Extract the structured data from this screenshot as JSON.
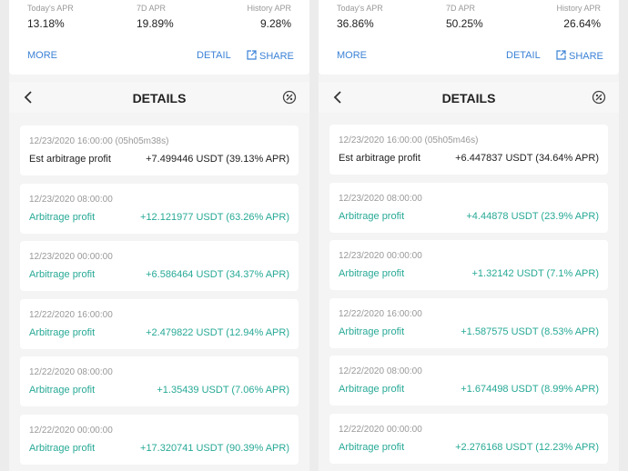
{
  "panels": [
    {
      "stats": [
        {
          "label": "Today's APR",
          "value": "13.18%"
        },
        {
          "label": "7D APR",
          "value": "19.89%"
        },
        {
          "label": "History APR",
          "value": "9.28%"
        }
      ],
      "more": "MORE",
      "detail": "DETAIL",
      "share": "SHARE",
      "title": "DETAILS",
      "entries": [
        {
          "time": "12/23/2020 16:00:00 (05h05m38s)",
          "label": "Est arbitrage profit",
          "amount": "+7.499446 USDT (39.13% APR)"
        },
        {
          "time": "12/23/2020 08:00:00",
          "label": "Arbitrage profit",
          "amount": "+12.121977 USDT (63.26% APR)"
        },
        {
          "time": "12/23/2020 00:00:00",
          "label": "Arbitrage profit",
          "amount": "+6.586464 USDT (34.37% APR)"
        },
        {
          "time": "12/22/2020 16:00:00",
          "label": "Arbitrage profit",
          "amount": "+2.479822 USDT (12.94% APR)"
        },
        {
          "time": "12/22/2020 08:00:00",
          "label": "Arbitrage profit",
          "amount": "+1.35439 USDT (7.06% APR)"
        },
        {
          "time": "12/22/2020 00:00:00",
          "label": "Arbitrage profit",
          "amount": "+17.320741 USDT (90.39% APR)"
        }
      ]
    },
    {
      "stats": [
        {
          "label": "Today's APR",
          "value": "36.86%"
        },
        {
          "label": "7D APR",
          "value": "50.25%"
        },
        {
          "label": "History APR",
          "value": "26.64%"
        }
      ],
      "more": "MORE",
      "detail": "DETAIL",
      "share": "SHARE",
      "title": "DETAILS",
      "entries": [
        {
          "time": "12/23/2020 16:00:00 (05h05m46s)",
          "label": "Est arbitrage profit",
          "amount": "+6.447837 USDT (34.64% APR)"
        },
        {
          "time": "12/23/2020 08:00:00",
          "label": "Arbitrage profit",
          "amount": "+4.44878 USDT (23.9% APR)"
        },
        {
          "time": "12/23/2020 00:00:00",
          "label": "Arbitrage profit",
          "amount": "+1.32142 USDT (7.1% APR)"
        },
        {
          "time": "12/22/2020 16:00:00",
          "label": "Arbitrage profit",
          "amount": "+1.587575 USDT (8.53% APR)"
        },
        {
          "time": "12/22/2020 08:00:00",
          "label": "Arbitrage profit",
          "amount": "+1.674498 USDT (8.99% APR)"
        },
        {
          "time": "12/22/2020 00:00:00",
          "label": "Arbitrage profit",
          "amount": "+2.276168 USDT (12.23% APR)"
        }
      ]
    }
  ]
}
